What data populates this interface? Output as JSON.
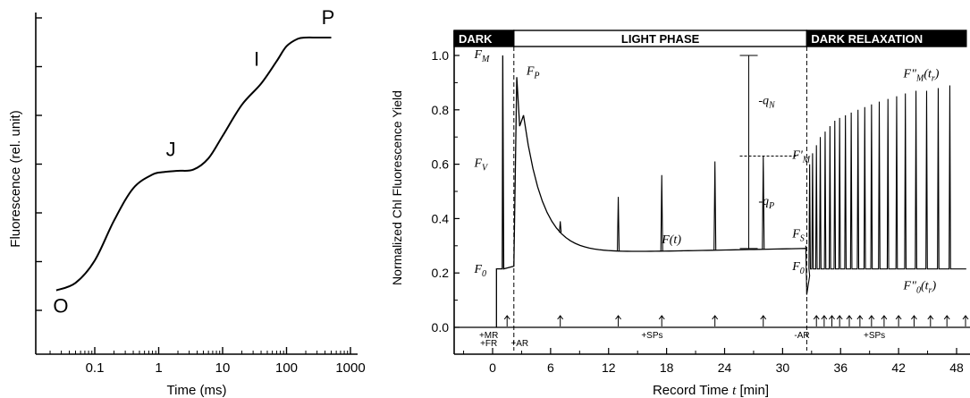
{
  "chart_data": [
    {
      "type": "line",
      "xscale": "log",
      "xlabel": "Time (ms)",
      "ylabel": "Fluorescence (rel. unit)",
      "xlim": [
        0.02,
        1000
      ],
      "x_ticks": [
        "0.1",
        "1",
        "10",
        "100",
        "1000"
      ],
      "y_ticks_labeled": false,
      "grid": false,
      "series": [
        {
          "x": [
            0.025,
            0.05,
            0.1,
            0.2,
            0.4,
            0.8,
            1.2,
            2,
            3.5,
            6,
            10,
            20,
            40,
            70,
            100,
            150,
            200,
            300,
            500
          ],
          "y": [
            0.06,
            0.12,
            0.3,
            0.62,
            0.88,
            0.99,
            1.01,
            1.02,
            1.03,
            1.12,
            1.3,
            1.55,
            1.72,
            1.9,
            2.02,
            2.08,
            2.09,
            2.09,
            2.09
          ]
        }
      ],
      "annotations": [
        {
          "text": "O",
          "x": 0.025,
          "y": 0.06
        },
        {
          "text": "J",
          "x": 1.2,
          "y": 1.01
        },
        {
          "text": "I",
          "x": 40,
          "y": 1.72
        },
        {
          "text": "P",
          "x": 200,
          "y": 2.09
        }
      ]
    },
    {
      "type": "line",
      "xlabel_prefix": "Record Time ",
      "xlabel_var": "t",
      "xlabel_suffix": " [min]",
      "ylabel": "Normalized Chl Fluorescence Yield",
      "xlim": [
        -4,
        49
      ],
      "ylim": [
        -0.1,
        1.0
      ],
      "x_ticks": [
        0,
        6,
        12,
        18,
        24,
        30,
        36,
        42,
        48
      ],
      "y_ticks": [
        "0.0",
        "0.2",
        "0.4",
        "0.6",
        "0.8",
        "1.0"
      ],
      "phases": [
        {
          "label": "DARK",
          "x_start": -4,
          "x_end": 2.2,
          "style": "dark"
        },
        {
          "label": "LIGHT PHASE",
          "x_start": 2.2,
          "x_end": 32.5,
          "style": "light"
        },
        {
          "label": "DARK RELAXATION",
          "x_start": 32.5,
          "x_end": 49,
          "style": "dark"
        }
      ],
      "trace": {
        "baseline_dark": 0.215,
        "fm_dark": 1.0,
        "fp_peak": 0.92,
        "steady_state": 0.29,
        "light_pulse_times": [
          7,
          13,
          17.5,
          23,
          28
        ],
        "light_pulse_peaks": [
          0.39,
          0.48,
          0.56,
          0.61,
          0.63
        ],
        "relax_pulse_times": [
          32.8,
          33.1,
          33.5,
          33.9,
          34.4,
          34.9,
          35.4,
          35.9,
          36.5,
          37.1,
          37.8,
          38.5,
          39.2,
          40.0,
          40.9,
          41.8,
          42.7,
          43.8,
          44.9,
          46.1,
          47.3
        ],
        "relax_pulse_peaks": [
          0.6,
          0.64,
          0.67,
          0.7,
          0.72,
          0.74,
          0.76,
          0.77,
          0.78,
          0.79,
          0.8,
          0.81,
          0.82,
          0.83,
          0.84,
          0.85,
          0.86,
          0.87,
          0.87,
          0.88,
          0.89
        ],
        "relax_baseline": 0.215
      },
      "arrow_times": [
        1.5,
        7,
        13,
        17.5,
        23,
        28,
        33.5,
        34.3,
        35.1,
        35.9,
        36.9,
        38.0,
        39.2,
        40.5,
        42.0,
        43.6,
        45.3,
        47.0,
        49.0
      ],
      "annotations": [
        {
          "text": "F",
          "sub": "M",
          "x": -1.9,
          "y": 0.99,
          "italic": true
        },
        {
          "text": "F",
          "sub": "P",
          "x": 3.5,
          "y": 0.93,
          "italic": true
        },
        {
          "text": "F",
          "sub": "V",
          "x": -1.9,
          "y": 0.59,
          "italic": true
        },
        {
          "text": "F",
          "sub": "0",
          "x": -1.9,
          "y": 0.2,
          "italic": true
        },
        {
          "text": "F(t)",
          "x": 17.5,
          "y": 0.31,
          "italic": true
        },
        {
          "text": "F'",
          "sub": "M",
          "x": 31.0,
          "y": 0.62,
          "italic": true
        },
        {
          "text": "F",
          "sub": "S",
          "x": 31.0,
          "y": 0.33,
          "italic": true
        },
        {
          "text": "F",
          "sub": "0",
          "x": 31.0,
          "y": 0.21,
          "italic": true
        },
        {
          "text": "F\"",
          "sub": "M",
          "post": "(t",
          "postsub": "r",
          "postend": ")",
          "x": 42.5,
          "y": 0.92,
          "italic": true
        },
        {
          "text": "F\"",
          "sub": "0",
          "post": "(t",
          "postsub": "r",
          "postend": ")",
          "x": 42.5,
          "y": 0.14,
          "italic": true
        },
        {
          "text": "-q",
          "sub": "N",
          "x": 27.5,
          "y": 0.82,
          "italic": true
        },
        {
          "text": "-q",
          "sub": "P",
          "x": 27.5,
          "y": 0.45,
          "italic": true
        }
      ],
      "bottom_labels": [
        {
          "text": "+MR",
          "x": -0.4,
          "row": 1
        },
        {
          "text": "+FR",
          "x": -0.4,
          "row": 2
        },
        {
          "text": "+AR",
          "x": 2.8,
          "row": 2
        },
        {
          "text": "+SPs",
          "x": 16.5,
          "row": 1
        },
        {
          "text": "-AR",
          "x": 32.0,
          "row": 1
        },
        {
          "text": "+SPs",
          "x": 39.5,
          "row": 1
        }
      ]
    }
  ]
}
